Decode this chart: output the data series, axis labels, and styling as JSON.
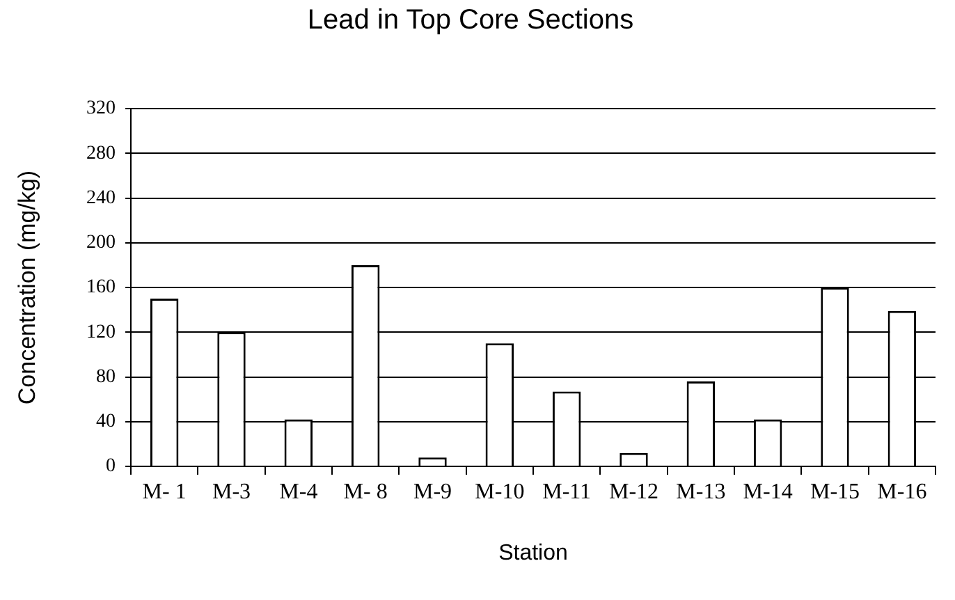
{
  "chart_data": {
    "type": "bar",
    "title": "Lead in Top Core Sections",
    "xlabel": "Station",
    "ylabel": "Concentration (mg/kg)",
    "categories": [
      "M- 1",
      "M-3",
      "M-4",
      "M- 8",
      "M-9",
      "M-10",
      "M-11",
      "M-12",
      "M-13",
      "M-14",
      "M-15",
      "M-16"
    ],
    "values": [
      150,
      120,
      42,
      180,
      8,
      110,
      67,
      12,
      76,
      42,
      160,
      139
    ],
    "color": "#ffffff",
    "ylim": [
      0,
      320
    ],
    "yticks": [
      0,
      40,
      80,
      120,
      160,
      200,
      240,
      280,
      320
    ],
    "grid": "y"
  }
}
